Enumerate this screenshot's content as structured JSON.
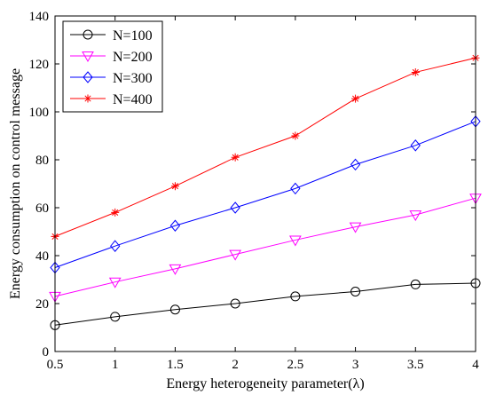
{
  "chart_data": {
    "type": "line",
    "xlabel": "Energy heterogeneity parameter(λ)",
    "ylabel": "Energy consumption on control message",
    "xlim": [
      0.5,
      4
    ],
    "ylim": [
      0,
      140
    ],
    "x_ticks": [
      "0.5",
      "1",
      "1.5",
      "2",
      "2.5",
      "3",
      "3.5",
      "4"
    ],
    "y_ticks": [
      "0",
      "20",
      "40",
      "60",
      "80",
      "100",
      "120",
      "140"
    ],
    "x": [
      0.5,
      1,
      1.5,
      2,
      2.5,
      3,
      3.5,
      4
    ],
    "grid": false,
    "legend_position": "top-left",
    "series": [
      {
        "name": "N=100",
        "color": "#000000",
        "marker": "circle",
        "values": [
          11,
          14.5,
          17.5,
          20,
          23,
          25,
          28,
          28.5
        ]
      },
      {
        "name": "N=200",
        "color": "#ff00ff",
        "marker": "triangle-down",
        "values": [
          23,
          29,
          34.5,
          40.5,
          46.5,
          52,
          57,
          64
        ]
      },
      {
        "name": "N=300",
        "color": "#0000ff",
        "marker": "diamond",
        "values": [
          35,
          44,
          52.5,
          60,
          68,
          78,
          86,
          96
        ]
      },
      {
        "name": "N=400",
        "color": "#ff0000",
        "marker": "asterisk",
        "values": [
          48,
          58,
          69,
          81,
          90,
          105.5,
          116.5,
          122.5
        ]
      }
    ]
  }
}
